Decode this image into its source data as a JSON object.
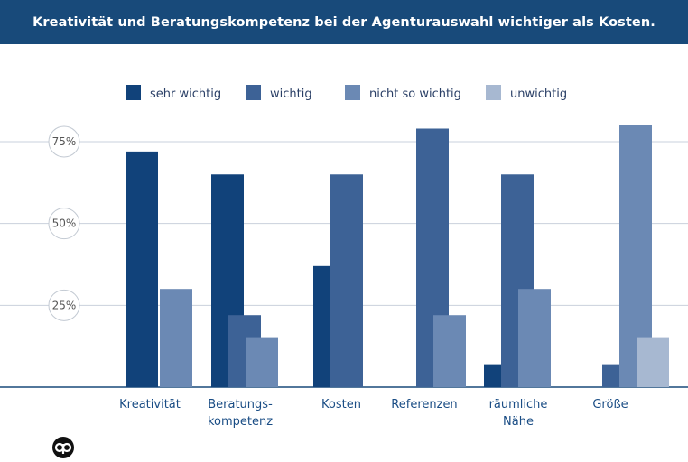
{
  "chart_data": {
    "type": "bar",
    "title": "Kreativität und Beratungskompetenz bei der Agenturauswahl wichtiger als Kosten.",
    "categories": [
      [
        "Kreativität"
      ],
      [
        "Beratungs-",
        "kompetenz"
      ],
      [
        "Kosten"
      ],
      [
        "Referenzen"
      ],
      [
        "räumliche",
        "Nähe"
      ],
      [
        "Größe"
      ]
    ],
    "series": [
      {
        "name": "sehr wichtig",
        "color": "#11427a",
        "values": [
          72,
          65,
          37,
          0,
          7,
          0
        ]
      },
      {
        "name": "wichtig",
        "color": "#3d6296",
        "values": [
          0,
          22,
          65,
          79,
          65,
          7
        ]
      },
      {
        "name": "nicht so wichtig",
        "color": "#6b89b4",
        "values": [
          30,
          15,
          0,
          22,
          30,
          80
        ]
      },
      {
        "name": "unwichtig",
        "color": "#a7b8d1",
        "values": [
          0,
          0,
          0,
          0,
          0,
          15
        ]
      }
    ],
    "yticks": [
      {
        "value": 25,
        "label": "25%"
      },
      {
        "value": 50,
        "label": "50%"
      },
      {
        "value": 75,
        "label": "75%"
      }
    ],
    "ylim": [
      0,
      85
    ],
    "grid": true,
    "legend_position": "top"
  },
  "logo_icon": "agency-logo-icon"
}
